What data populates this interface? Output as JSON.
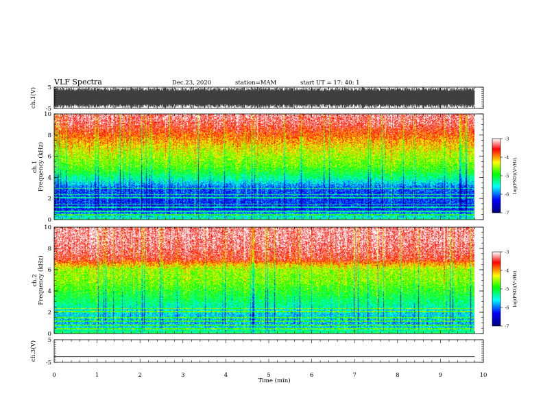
{
  "header": {
    "title": "VLF Spectra",
    "date": "Dec.23, 2020",
    "station": "station=MAM",
    "start": "start  UT =   17: 40: 1"
  },
  "chart_data": [
    {
      "type": "line",
      "name": "ch1-waveform",
      "ylabel": "ch.1(V)",
      "ylim": [
        -5,
        5
      ],
      "yticks": [
        "5",
        "-5"
      ],
      "xlim": [
        0,
        10
      ],
      "note_series": "dense black waveform from 0 to ~9.8 min, amplitude roughly -5 to +5 V"
    },
    {
      "type": "heatmap",
      "name": "ch1-spectrogram",
      "ylabel": "ch.1\nFrequency (kHz)",
      "ylim": [
        0,
        10
      ],
      "yticks": [
        "0",
        "2",
        "4",
        "6",
        "8",
        "10"
      ],
      "xlim": [
        0,
        10
      ],
      "data_end_min": 9.8,
      "colorbar": {
        "label": "log(PSD)(V²/Hz)",
        "range": [
          -7,
          -3
        ],
        "ticks": [
          "-3",
          "-4",
          "-5",
          "-6",
          "-7"
        ]
      },
      "profile_freq_khz": [
        0,
        0.5,
        1,
        2,
        3,
        3.7,
        4.5,
        5.2,
        6,
        7,
        8,
        9,
        10
      ],
      "profile_log_psd": [
        -5.2,
        -5.8,
        -6.3,
        -6.2,
        -6.1,
        -5.5,
        -5.0,
        -4.7,
        -4.5,
        -4.2,
        -3.8,
        -3.4,
        -3.2
      ]
    },
    {
      "type": "heatmap",
      "name": "ch2-spectrogram",
      "ylabel": "ch.2\nFrequency (kHz)",
      "ylim": [
        0,
        10
      ],
      "yticks": [
        "0",
        "2",
        "4",
        "6",
        "8",
        "10"
      ],
      "xlim": [
        0,
        10
      ],
      "data_end_min": 9.8,
      "colorbar": {
        "label": "log(PSD)(V²/Hz)",
        "range": [
          -7,
          -3
        ],
        "ticks": [
          "-3",
          "-4",
          "-5",
          "-6",
          "-7"
        ]
      },
      "profile_freq_khz": [
        0,
        0.5,
        1,
        2,
        3,
        4,
        5,
        6,
        6.5,
        7,
        8,
        9,
        10
      ],
      "profile_log_psd": [
        -5.0,
        -5.6,
        -5.8,
        -5.6,
        -5.2,
        -4.9,
        -4.6,
        -4.5,
        -4.1,
        -3.5,
        -3.3,
        -3.2,
        -3.2
      ]
    },
    {
      "type": "line",
      "name": "ch3-waveform",
      "ylabel": "ch.3(V)",
      "ylim": [
        -5,
        5
      ],
      "yticks": [
        "5",
        "-5"
      ],
      "xlim": [
        0,
        10
      ],
      "series": [
        {
          "x": [
            0,
            9.8
          ],
          "y": [
            -2.5,
            -2.5
          ]
        }
      ]
    }
  ],
  "xaxis": {
    "label": "Time (min)",
    "ticks": [
      "0",
      "1",
      "2",
      "3",
      "4",
      "5",
      "6",
      "7",
      "8",
      "9",
      "10"
    ]
  },
  "colors": {
    "colormap": [
      "#00007f",
      "#0000ff",
      "#00ffff",
      "#00ff00",
      "#ffff00",
      "#ff0000",
      "#ffffff"
    ]
  }
}
